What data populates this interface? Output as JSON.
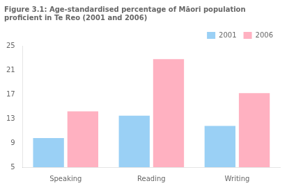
{
  "chart_data": {
    "type": "bar",
    "title": "Figure 3.1: Age-standardised percentage of Māori population\nproficient in Te Reo (2001 and 2006)",
    "categories": [
      "Speaking",
      "Reading",
      "Writing"
    ],
    "series": [
      {
        "name": "2001",
        "values": [
          9.8,
          13.5,
          11.8
        ]
      },
      {
        "name": "2006",
        "values": [
          14.2,
          22.8,
          17.2
        ]
      }
    ],
    "ylim": [
      5,
      25
    ],
    "yticks": [
      5,
      9,
      13,
      17,
      21,
      25
    ],
    "grid": false,
    "legend": "upper right"
  }
}
